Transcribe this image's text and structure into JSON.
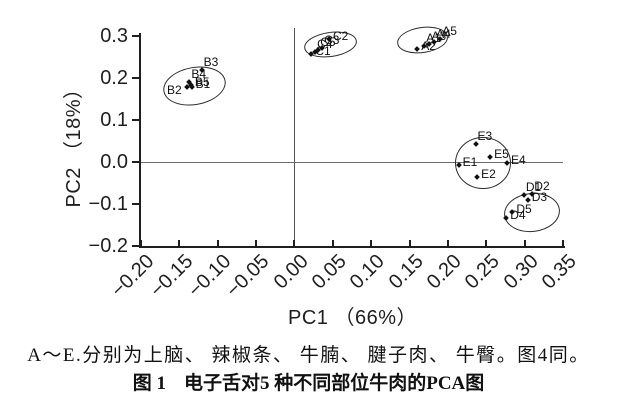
{
  "colors": {
    "ink": "#1a1a1a",
    "axis": "#1f1f1f",
    "zero_line": "#6b6b6b",
    "background": "#ffffff"
  },
  "figure": {
    "caption_note": "A～E.分别为上脑、 辣椒条、 牛腩、 腱子肉、 牛臀。图4同。",
    "caption_label": "图 1",
    "caption_title": "电子舌对5 种不同部位牛肉的PCA图"
  },
  "chart_data": {
    "type": "scatter",
    "title": "",
    "xlabel": "PC1 （66%）",
    "ylabel": "PC2 （18%）",
    "xlim": [
      -0.2,
      0.35
    ],
    "ylim": [
      -0.2,
      0.3
    ],
    "x_ticks": [
      -0.2,
      -0.15,
      -0.1,
      -0.05,
      0,
      0.05,
      0.1,
      0.15,
      0.2,
      0.25,
      0.3,
      0.35
    ],
    "x_tick_labels": [
      "−0.20",
      "−0.15",
      "−0.10",
      "−0.05",
      "0.00",
      "0.05",
      "0.10",
      "0.15",
      "0.20",
      "0.25",
      "0.30",
      "0.35"
    ],
    "y_ticks": [
      0.3,
      0.2,
      0.1,
      0,
      -0.1,
      -0.2
    ],
    "y_tick_labels": [
      "0.3",
      "0.2",
      "0.1",
      "0.0",
      "−0.1",
      "−0.2"
    ],
    "grid": false,
    "legend": "none",
    "zero_lines": {
      "vertical_at_x": 0,
      "horizontal_at_y": 0
    },
    "clusters": [
      {
        "name": "A",
        "ellipse": {
          "cx": 0.165,
          "cy": 0.294,
          "rx": 0.032,
          "ry": 0.028,
          "rot": -8
        },
        "points": [
          {
            "id": "A1",
            "x": 0.169,
            "y": 0.277,
            "side": "ur"
          },
          {
            "id": "A2",
            "x": 0.16,
            "y": 0.27,
            "side": "r"
          },
          {
            "id": "A3",
            "x": 0.176,
            "y": 0.282,
            "side": "ur"
          },
          {
            "id": "A4",
            "x": 0.182,
            "y": 0.285,
            "side": "ur"
          },
          {
            "id": "A5",
            "x": 0.19,
            "y": 0.292,
            "side": "ur"
          }
        ]
      },
      {
        "name": "B",
        "ellipse": {
          "cx": -0.131,
          "cy": 0.183,
          "rx": 0.04,
          "ry": 0.043,
          "rot": -10
        },
        "points": [
          {
            "id": "B1",
            "x": -0.134,
            "y": 0.179,
            "side": "r"
          },
          {
            "id": "B2",
            "x": -0.14,
            "y": 0.178,
            "side": "dl"
          },
          {
            "id": "B3",
            "x": -0.121,
            "y": 0.218,
            "side": "ur"
          },
          {
            "id": "B4",
            "x": -0.137,
            "y": 0.19,
            "side": "ur"
          },
          {
            "id": "B5",
            "x": -0.135,
            "y": 0.184,
            "side": "r"
          }
        ]
      },
      {
        "name": "C",
        "ellipse": {
          "cx": 0.045,
          "cy": 0.283,
          "rx": 0.033,
          "ry": 0.027,
          "rot": -8
        },
        "points": [
          {
            "id": "C1",
            "x": 0.022,
            "y": 0.258,
            "side": "r"
          },
          {
            "id": "C2",
            "x": 0.045,
            "y": 0.292,
            "side": "r"
          },
          {
            "id": "C3",
            "x": 0.036,
            "y": 0.271,
            "side": "ur"
          },
          {
            "id": "C4",
            "x": 0.027,
            "y": 0.262,
            "side": "ur"
          },
          {
            "id": "C5",
            "x": 0.031,
            "y": 0.266,
            "side": "ur"
          }
        ]
      },
      {
        "name": "D",
        "ellipse": {
          "cx": 0.308,
          "cy": -0.118,
          "rx": 0.035,
          "ry": 0.044,
          "rot": -6
        },
        "points": [
          {
            "id": "D1",
            "x": 0.299,
            "y": -0.079,
            "side": "ur"
          },
          {
            "id": "D2",
            "x": 0.31,
            "y": -0.077,
            "side": "ur"
          },
          {
            "id": "D3",
            "x": 0.304,
            "y": -0.09,
            "side": "r"
          },
          {
            "id": "D4",
            "x": 0.276,
            "y": -0.134,
            "side": "r"
          },
          {
            "id": "D5",
            "x": 0.284,
            "y": -0.118,
            "side": "r"
          }
        ]
      },
      {
        "name": "E",
        "ellipse": {
          "cx": 0.244,
          "cy": 0.0,
          "rx": 0.035,
          "ry": 0.06,
          "rot": 0
        },
        "points": [
          {
            "id": "E1",
            "x": 0.214,
            "y": -0.007,
            "side": "r"
          },
          {
            "id": "E2",
            "x": 0.238,
            "y": -0.036,
            "side": "r"
          },
          {
            "id": "E3",
            "x": 0.236,
            "y": 0.044,
            "side": "ur"
          },
          {
            "id": "E4",
            "x": 0.277,
            "y": -0.003,
            "side": "r"
          },
          {
            "id": "E5",
            "x": 0.255,
            "y": 0.012,
            "side": "r"
          }
        ]
      }
    ]
  }
}
